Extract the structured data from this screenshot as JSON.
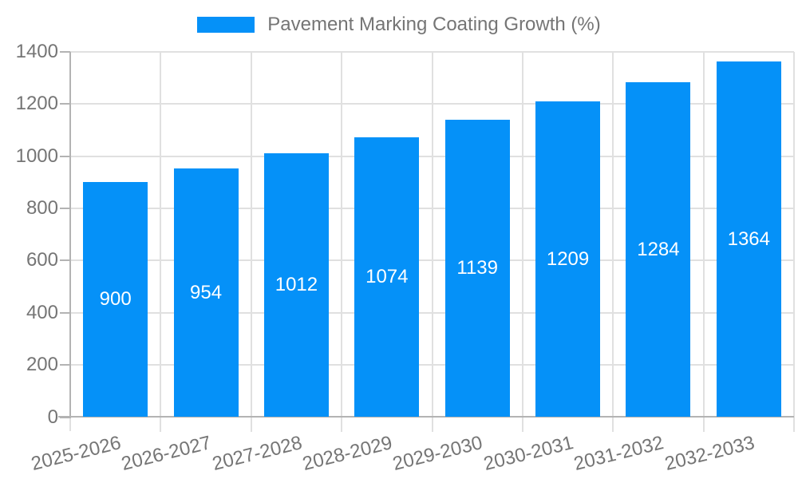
{
  "chart_data": {
    "type": "bar",
    "title": "Pavement Marking Coating Growth (%)",
    "categories": [
      "2025-2026",
      "2026-2027",
      "2027-2028",
      "2028-2029",
      "2029-2030",
      "2030-2031",
      "2031-2032",
      "2032-2033"
    ],
    "values": [
      900,
      954,
      1012,
      1074,
      1139,
      1209,
      1284,
      1364
    ],
    "xlabel": "",
    "ylabel": "",
    "ylim": [
      0,
      1400
    ],
    "yticks": [
      0,
      200,
      400,
      600,
      800,
      1000,
      1200,
      1400
    ],
    "grid": true,
    "legend_position": "top",
    "bar_color": "#0591f8",
    "bar_label_color": "#ffffff",
    "axis_text_color": "#757575",
    "gridline_color": "#e0e0e0",
    "axis_line_color": "#b3b3b3"
  }
}
